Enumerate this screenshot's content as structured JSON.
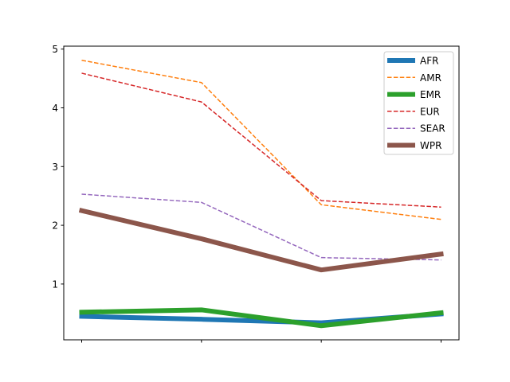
{
  "chart_data": {
    "type": "line",
    "title": "",
    "xlabel": "",
    "ylabel": "",
    "x": [
      0,
      1,
      2,
      3
    ],
    "x_tick_labels": [
      "",
      "",
      "",
      ""
    ],
    "ylim": [
      0.05,
      5.05
    ],
    "y_ticks": [
      1,
      2,
      3,
      4,
      5
    ],
    "grid": false,
    "legend_placement": "top-right",
    "series": [
      {
        "name": "AFR",
        "values": [
          0.45,
          0.4,
          0.34,
          0.49
        ],
        "color": "#1f77b4",
        "style": "solid",
        "width": "thick"
      },
      {
        "name": "AMR",
        "values": [
          4.81,
          4.43,
          2.35,
          2.1
        ],
        "color": "#ff7f0e",
        "style": "dashed",
        "width": "thin"
      },
      {
        "name": "EMR",
        "values": [
          0.52,
          0.56,
          0.29,
          0.51
        ],
        "color": "#2ca02c",
        "style": "solid",
        "width": "thick"
      },
      {
        "name": "EUR",
        "values": [
          4.59,
          4.1,
          2.42,
          2.31
        ],
        "color": "#d62728",
        "style": "dashed",
        "width": "thin"
      },
      {
        "name": "SEAR",
        "values": [
          2.53,
          2.39,
          1.45,
          1.41
        ],
        "color": "#9467bd",
        "style": "dashed",
        "width": "thin"
      },
      {
        "name": "WPR",
        "values": [
          2.25,
          1.77,
          1.24,
          1.51
        ],
        "color": "#8c564b",
        "style": "solid",
        "width": "thick"
      }
    ]
  }
}
